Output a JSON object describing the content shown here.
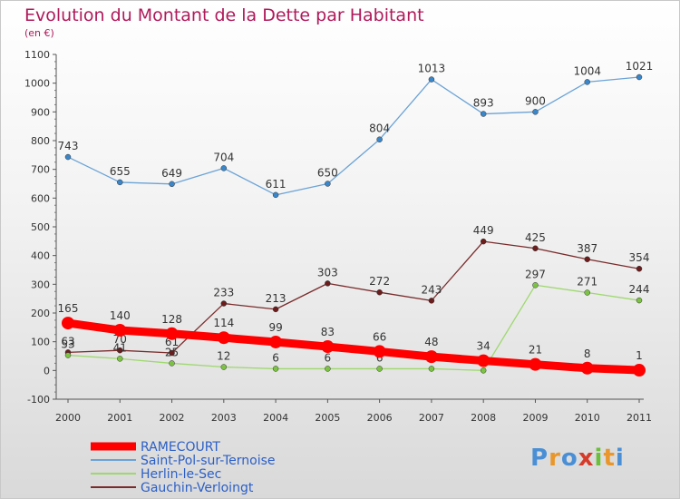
{
  "logo": {
    "text": "Proxiti",
    "letter_colors": [
      "#4a8fd6",
      "#e9962a",
      "#4a8fd6",
      "#d63b2a",
      "#6bbf3a",
      "#e9962a",
      "#4a8fd6"
    ]
  },
  "chart_data": {
    "type": "line",
    "title": "Evolution du Montant de la Dette par Habitant",
    "subtitle": "(en €)",
    "xlabel": "",
    "ylabel": "",
    "categories": [
      "2000",
      "2001",
      "2002",
      "2003",
      "2004",
      "2005",
      "2006",
      "2007",
      "2008",
      "2009",
      "2010",
      "2011"
    ],
    "ylim": [
      -100,
      1100
    ],
    "yticks": [
      -100,
      0,
      100,
      200,
      300,
      400,
      500,
      600,
      700,
      800,
      900,
      1000,
      1100
    ],
    "grid": false,
    "legend_position": "bottom-left",
    "title_color": "#b0195a",
    "series": [
      {
        "name": "Saint-Pol-sur-Ternoise",
        "color": "#6ba3d6",
        "marker": "#3a86c8",
        "values": [
          743,
          655,
          649,
          704,
          611,
          650,
          804,
          1013,
          893,
          900,
          1004,
          1021
        ],
        "labels": [
          "743",
          "655",
          "649",
          "704",
          "611",
          "650",
          "804",
          "1013",
          "893",
          "900",
          "1004",
          "1021"
        ]
      },
      {
        "name": "Gauchin-Verloingt",
        "color": "#7a2b2b",
        "marker": "#6b1c1c",
        "values": [
          63,
          70,
          61,
          233,
          213,
          303,
          272,
          243,
          449,
          425,
          387,
          354
        ],
        "labels": [
          "63",
          "70",
          "61",
          "233",
          "213",
          "303",
          "272",
          "243",
          "449",
          "425",
          "387",
          "354"
        ]
      },
      {
        "name": "Herlin-le-Sec",
        "color": "#9ed86e",
        "marker": "#7cc243",
        "values": [
          53,
          41,
          25,
          12,
          6,
          6,
          6,
          6,
          0,
          297,
          271,
          244
        ],
        "labels": [
          "53",
          "41",
          "25",
          "12",
          "6",
          "6",
          "6",
          "6",
          "0",
          "297",
          "271",
          "244"
        ]
      },
      {
        "name": "RAMECOURT",
        "color": "#ff0000",
        "marker": "#ff0000",
        "values": [
          165,
          140,
          128,
          114,
          99,
          83,
          66,
          48,
          34,
          21,
          8,
          1
        ],
        "labels": [
          "165",
          "140",
          "128",
          "114",
          "99",
          "83",
          "66",
          "48",
          "34",
          "21",
          "8",
          "1"
        ]
      }
    ],
    "legend_order": [
      "RAMECOURT",
      "Saint-Pol-sur-Ternoise",
      "Herlin-le-Sec",
      "Gauchin-Verloingt"
    ]
  }
}
